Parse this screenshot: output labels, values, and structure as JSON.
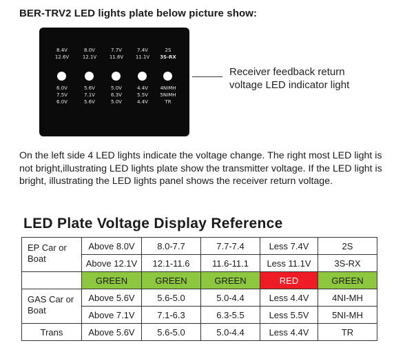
{
  "heading": "BER-TRV2 LED lights plate below picture show:",
  "panel": {
    "columns": [
      {
        "top": [
          "8.4V",
          "12.6V"
        ],
        "bottom": [
          "6.0V",
          "7.5V",
          "6.0V"
        ]
      },
      {
        "top": [
          "8.0V",
          "12.1V"
        ],
        "bottom": [
          "5.6V",
          "7.1V",
          "5.6V"
        ]
      },
      {
        "top": [
          "7.7V",
          "11.6V"
        ],
        "bottom": [
          "5.0V",
          "6.3V",
          "5.0V"
        ]
      },
      {
        "top": [
          "7.4V",
          "11.1V"
        ],
        "bottom": [
          "4.4V",
          "5.5V",
          "4.4V"
        ]
      },
      {
        "top": [
          "2S",
          "3S-RX"
        ],
        "bottom": [
          "4NIMH",
          "5NIMH",
          "TR"
        ]
      }
    ]
  },
  "callout": [
    "Receiver feedback return",
    "voltage LED indicator light"
  ],
  "paragraph": "On the left side 4 LED lights indicate the voltage change. The right most LED light is not bright,illustrating LED lights plate show the transmitter voltage. If the LED light is bright, illustrating the LED lights panel shows the receiver return voltage.",
  "ref_title": "LED Plate Voltage Display Reference",
  "table": {
    "ep_label": "EP Car or Boat",
    "ep_rows": [
      [
        "Above 8.0V",
        "8.0-7.7",
        "7.7-7.4",
        "Less 7.4V",
        "2S"
      ],
      [
        "Above 12.1V",
        "12.1-11.6",
        "11.6-11.1",
        "Less 11.1V",
        "3S-RX"
      ]
    ],
    "color_row": [
      "GREEN",
      "GREEN",
      "GREEN",
      "RED",
      "GREEN"
    ],
    "gas_label": "GAS Car or Boat",
    "gas_rows": [
      [
        "Above 5.6V",
        "5.6-5.0",
        "5.0-4.4",
        "Less 4.4V",
        "4NI-MH"
      ],
      [
        "Above 7.1V",
        "7.1-6.3",
        "6.3-5.5",
        "Less 5.5V",
        "5NI-MH"
      ]
    ],
    "trans_label": "Trans",
    "trans_row": [
      "Above 5.6V",
      "5.6-5.0",
      "5.0-4.4",
      "Less 4.4V",
      "TR"
    ]
  },
  "colors": {
    "green": "#8dc63f",
    "red": "#ee1c24",
    "panel": "#0b0b0b"
  }
}
